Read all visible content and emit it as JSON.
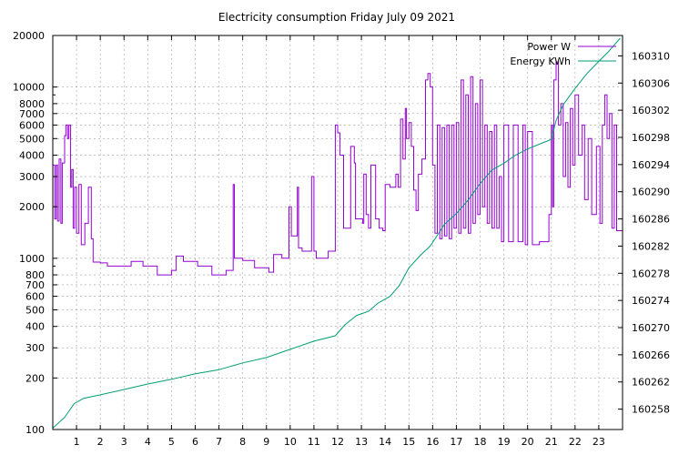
{
  "chart_data": {
    "type": "line",
    "title": "Electricity consumption Friday July 09 2021",
    "legend_position": "top-right",
    "grid": true,
    "x_axis": {
      "range": [
        0,
        24
      ],
      "ticks": [
        1,
        2,
        3,
        4,
        5,
        6,
        7,
        8,
        9,
        10,
        11,
        12,
        13,
        14,
        15,
        16,
        17,
        18,
        19,
        20,
        21,
        22,
        23
      ],
      "tick_labels": [
        "1",
        "2",
        "3",
        "4",
        "5",
        "6",
        "7",
        "8",
        "9",
        "10",
        "11",
        "12",
        "13",
        "14",
        "15",
        "16",
        "17",
        "18",
        "19",
        "20",
        "21",
        "22",
        "23"
      ]
    },
    "y_left": {
      "scale": "log",
      "range": [
        100,
        20000
      ],
      "ticks": [
        100,
        200,
        300,
        400,
        500,
        600,
        700,
        800,
        1000,
        2000,
        3000,
        4000,
        5000,
        6000,
        7000,
        8000,
        10000,
        20000
      ],
      "tick_labels": [
        "100",
        "200",
        "300",
        "400",
        "500",
        "600",
        "700",
        "800",
        "1000",
        "2000",
        "3000",
        "4000",
        "5000",
        "6000",
        "7000",
        "8000",
        "10000",
        "20000"
      ]
    },
    "y_right": {
      "scale": "linear",
      "range": [
        160255,
        160313
      ],
      "ticks": [
        160258,
        160262,
        160266,
        160270,
        160274,
        160278,
        160282,
        160286,
        160290,
        160294,
        160298,
        160302,
        160306,
        160310
      ],
      "tick_labels": [
        "160258",
        "160262",
        "160266",
        "160270",
        "160274",
        "160278",
        "160282",
        "160286",
        "160290",
        "160294",
        "160298",
        "160302",
        "160306",
        "160310"
      ]
    },
    "series": [
      {
        "name": "Power W",
        "color": "#9400d3",
        "axis": "left",
        "step": true,
        "points": [
          [
            0.0,
            3500
          ],
          [
            0.08,
            1700
          ],
          [
            0.14,
            3500
          ],
          [
            0.2,
            1650
          ],
          [
            0.27,
            3800
          ],
          [
            0.34,
            1600
          ],
          [
            0.4,
            3600
          ],
          [
            0.5,
            5200
          ],
          [
            0.55,
            6000
          ],
          [
            0.62,
            5000
          ],
          [
            0.68,
            6000
          ],
          [
            0.75,
            2600
          ],
          [
            0.8,
            3300
          ],
          [
            0.86,
            1500
          ],
          [
            0.92,
            2600
          ],
          [
            1.0,
            1400
          ],
          [
            1.1,
            2700
          ],
          [
            1.2,
            1200
          ],
          [
            1.35,
            1600
          ],
          [
            1.5,
            2600
          ],
          [
            1.62,
            1300
          ],
          [
            1.7,
            950
          ],
          [
            2.0,
            940
          ],
          [
            2.3,
            900
          ],
          [
            3.3,
            960
          ],
          [
            3.8,
            900
          ],
          [
            4.4,
            800
          ],
          [
            5.0,
            850
          ],
          [
            5.2,
            1030
          ],
          [
            5.5,
            960
          ],
          [
            6.1,
            900
          ],
          [
            6.7,
            800
          ],
          [
            7.3,
            850
          ],
          [
            7.6,
            2700
          ],
          [
            7.65,
            1000
          ],
          [
            8.0,
            970
          ],
          [
            8.5,
            880
          ],
          [
            9.1,
            830
          ],
          [
            9.3,
            1050
          ],
          [
            9.65,
            1000
          ],
          [
            9.95,
            2000
          ],
          [
            10.05,
            1350
          ],
          [
            10.3,
            2600
          ],
          [
            10.35,
            1150
          ],
          [
            10.5,
            1100
          ],
          [
            10.9,
            3000
          ],
          [
            11.0,
            1100
          ],
          [
            11.1,
            1000
          ],
          [
            11.6,
            1100
          ],
          [
            11.9,
            6000
          ],
          [
            12.0,
            5400
          ],
          [
            12.1,
            4000
          ],
          [
            12.25,
            1500
          ],
          [
            12.55,
            4500
          ],
          [
            12.7,
            3600
          ],
          [
            12.75,
            1700
          ],
          [
            13.05,
            1600
          ],
          [
            13.1,
            3100
          ],
          [
            13.2,
            1800
          ],
          [
            13.3,
            1500
          ],
          [
            13.4,
            3500
          ],
          [
            13.6,
            1700
          ],
          [
            13.75,
            1500
          ],
          [
            13.9,
            1450
          ],
          [
            14.0,
            2700
          ],
          [
            14.2,
            2600
          ],
          [
            14.45,
            3100
          ],
          [
            14.55,
            2600
          ],
          [
            14.65,
            6500
          ],
          [
            14.75,
            3800
          ],
          [
            14.85,
            7500
          ],
          [
            14.9,
            5000
          ],
          [
            15.0,
            6200
          ],
          [
            15.1,
            4500
          ],
          [
            15.2,
            2500
          ],
          [
            15.3,
            1900
          ],
          [
            15.4,
            3100
          ],
          [
            15.55,
            3800
          ],
          [
            15.7,
            11000
          ],
          [
            15.8,
            12000
          ],
          [
            15.9,
            10000
          ],
          [
            16.0,
            3500
          ],
          [
            16.1,
            1400
          ],
          [
            16.2,
            6000
          ],
          [
            16.3,
            1300
          ],
          [
            16.4,
            5800
          ],
          [
            16.5,
            1350
          ],
          [
            16.6,
            6000
          ],
          [
            16.7,
            1300
          ],
          [
            16.8,
            6000
          ],
          [
            16.9,
            1500
          ],
          [
            17.0,
            6200
          ],
          [
            17.1,
            1400
          ],
          [
            17.2,
            11000
          ],
          [
            17.3,
            1500
          ],
          [
            17.4,
            9000
          ],
          [
            17.5,
            1400
          ],
          [
            17.6,
            11500
          ],
          [
            17.7,
            1600
          ],
          [
            17.8,
            8000
          ],
          [
            17.9,
            1800
          ],
          [
            18.0,
            11000
          ],
          [
            18.1,
            2000
          ],
          [
            18.2,
            6000
          ],
          [
            18.3,
            1600
          ],
          [
            18.4,
            5500
          ],
          [
            18.5,
            1500
          ],
          [
            18.6,
            6000
          ],
          [
            18.7,
            1500
          ],
          [
            18.8,
            3000
          ],
          [
            18.9,
            1250
          ],
          [
            19.0,
            6000
          ],
          [
            19.2,
            1250
          ],
          [
            19.4,
            6000
          ],
          [
            19.6,
            1250
          ],
          [
            19.8,
            6000
          ],
          [
            19.9,
            1200
          ],
          [
            20.0,
            5500
          ],
          [
            20.2,
            1200
          ],
          [
            20.5,
            1250
          ],
          [
            20.7,
            1250
          ],
          [
            20.9,
            1800
          ],
          [
            21.0,
            6000
          ],
          [
            21.05,
            2000
          ],
          [
            21.1,
            11000
          ],
          [
            21.2,
            14000
          ],
          [
            21.3,
            6000
          ],
          [
            21.4,
            8000
          ],
          [
            21.5,
            3000
          ],
          [
            21.6,
            6200
          ],
          [
            21.7,
            2600
          ],
          [
            21.8,
            7500
          ],
          [
            21.9,
            3500
          ],
          [
            22.0,
            9000
          ],
          [
            22.15,
            4000
          ],
          [
            22.3,
            6000
          ],
          [
            22.4,
            2200
          ],
          [
            22.55,
            5000
          ],
          [
            22.7,
            1800
          ],
          [
            22.9,
            4500
          ],
          [
            23.05,
            1600
          ],
          [
            23.15,
            6000
          ],
          [
            23.25,
            9000
          ],
          [
            23.35,
            5000
          ],
          [
            23.45,
            7000
          ],
          [
            23.55,
            1500
          ],
          [
            23.65,
            6000
          ],
          [
            23.75,
            1450
          ],
          [
            23.9,
            1450
          ]
        ]
      },
      {
        "name": "Energy KWh",
        "color": "#009e73",
        "axis": "right",
        "step": false,
        "points": [
          [
            0.0,
            160255.2
          ],
          [
            0.5,
            160256.8
          ],
          [
            0.9,
            160258.8
          ],
          [
            1.3,
            160259.6
          ],
          [
            2.0,
            160260.1
          ],
          [
            3.0,
            160260.9
          ],
          [
            4.0,
            160261.7
          ],
          [
            5.0,
            160262.4
          ],
          [
            6.0,
            160263.2
          ],
          [
            7.0,
            160263.8
          ],
          [
            8.0,
            160264.8
          ],
          [
            9.0,
            160265.6
          ],
          [
            10.0,
            160266.8
          ],
          [
            11.0,
            160268.0
          ],
          [
            11.9,
            160268.8
          ],
          [
            12.3,
            160270.4
          ],
          [
            12.8,
            160271.8
          ],
          [
            13.3,
            160272.4
          ],
          [
            13.7,
            160273.6
          ],
          [
            14.2,
            160274.6
          ],
          [
            14.6,
            160276.2
          ],
          [
            15.0,
            160278.8
          ],
          [
            15.5,
            160280.7
          ],
          [
            15.9,
            160282.0
          ],
          [
            16.5,
            160285.2
          ],
          [
            17.0,
            160286.8
          ],
          [
            17.5,
            160288.8
          ],
          [
            18.0,
            160291.2
          ],
          [
            18.5,
            160293.2
          ],
          [
            19.0,
            160294.2
          ],
          [
            19.5,
            160295.4
          ],
          [
            20.0,
            160296.3
          ],
          [
            20.5,
            160297.0
          ],
          [
            21.0,
            160297.7
          ],
          [
            21.2,
            160300.5
          ],
          [
            21.5,
            160302.8
          ],
          [
            22.0,
            160305.2
          ],
          [
            22.5,
            160307.4
          ],
          [
            23.0,
            160309.2
          ],
          [
            23.4,
            160310.6
          ],
          [
            23.9,
            160312.6
          ]
        ]
      }
    ]
  }
}
